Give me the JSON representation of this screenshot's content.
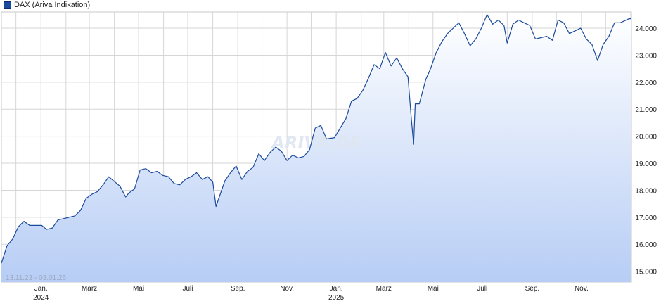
{
  "legend": {
    "label": "DAX (Ariva Indikation)",
    "color": "#1a4a9c"
  },
  "date_range": "13.11.23 - 03.01.26",
  "watermark": "ARIVA.DE",
  "chart_data": {
    "type": "area",
    "series": [
      {
        "name": "DAX (Ariva Indikation)",
        "x": [
          "2023-11-13",
          "2023-11-20",
          "2023-11-27",
          "2023-12-04",
          "2023-12-11",
          "2023-12-18",
          "2023-12-27",
          "2024-01-02",
          "2024-01-08",
          "2024-01-15",
          "2024-01-22",
          "2024-01-29",
          "2024-02-05",
          "2024-02-12",
          "2024-02-19",
          "2024-02-26",
          "2024-03-04",
          "2024-03-11",
          "2024-03-18",
          "2024-03-25",
          "2024-04-02",
          "2024-04-08",
          "2024-04-15",
          "2024-04-19",
          "2024-04-26",
          "2024-05-03",
          "2024-05-10",
          "2024-05-17",
          "2024-05-24",
          "2024-05-31",
          "2024-06-07",
          "2024-06-14",
          "2024-06-21",
          "2024-06-28",
          "2024-07-05",
          "2024-07-12",
          "2024-07-19",
          "2024-07-26",
          "2024-08-01",
          "2024-08-05",
          "2024-08-09",
          "2024-08-16",
          "2024-08-23",
          "2024-08-30",
          "2024-09-06",
          "2024-09-13",
          "2024-09-20",
          "2024-09-27",
          "2024-10-04",
          "2024-10-11",
          "2024-10-18",
          "2024-10-25",
          "2024-11-01",
          "2024-11-08",
          "2024-11-15",
          "2024-11-22",
          "2024-11-29",
          "2024-12-06",
          "2024-12-13",
          "2024-12-20",
          "2024-12-30",
          "2025-01-06",
          "2025-01-13",
          "2025-01-20",
          "2025-01-27",
          "2025-02-03",
          "2025-02-10",
          "2025-02-17",
          "2025-02-24",
          "2025-03-03",
          "2025-03-10",
          "2025-03-17",
          "2025-03-24",
          "2025-03-31",
          "2025-04-04",
          "2025-04-07",
          "2025-04-09",
          "2025-04-14",
          "2025-04-22",
          "2025-04-28",
          "2025-05-05",
          "2025-05-12",
          "2025-05-19",
          "2025-05-26",
          "2025-06-02",
          "2025-06-09",
          "2025-06-16",
          "2025-06-23",
          "2025-06-30",
          "2025-07-07",
          "2025-07-14",
          "2025-07-21",
          "2025-07-28",
          "2025-08-01",
          "2025-08-08",
          "2025-08-15",
          "2025-08-22",
          "2025-08-29",
          "2025-09-05",
          "2025-09-12",
          "2025-09-19",
          "2025-09-26",
          "2025-10-03",
          "2025-10-10",
          "2025-10-17",
          "2025-10-24",
          "2025-10-31",
          "2025-11-07",
          "2025-11-14",
          "2025-11-21",
          "2025-11-28",
          "2025-12-05",
          "2025-12-12",
          "2025-12-19",
          "2025-12-30",
          "2026-01-02"
        ],
        "values": [
          15300,
          15950,
          16200,
          16650,
          16850,
          16700,
          16700,
          16700,
          16550,
          16600,
          16900,
          16950,
          17000,
          17050,
          17250,
          17700,
          17850,
          17950,
          18200,
          18500,
          18300,
          18150,
          17750,
          17900,
          18050,
          18750,
          18800,
          18650,
          18700,
          18550,
          18500,
          18250,
          18200,
          18400,
          18500,
          18650,
          18400,
          18500,
          18300,
          17400,
          17750,
          18350,
          18650,
          18900,
          18400,
          18700,
          18850,
          19350,
          19100,
          19400,
          19600,
          19450,
          19100,
          19300,
          19200,
          19250,
          19500,
          20300,
          20400,
          19900,
          19950,
          20300,
          20650,
          21300,
          21400,
          21700,
          22150,
          22650,
          22500,
          23100,
          22600,
          22900,
          22500,
          22200,
          20700,
          19700,
          21200,
          21200,
          22100,
          22500,
          23100,
          23500,
          23800,
          24000,
          24200,
          23800,
          23350,
          23600,
          24000,
          24500,
          24150,
          24300,
          24100,
          23450,
          24150,
          24300,
          24200,
          24100,
          23600,
          23650,
          23700,
          23550,
          24300,
          24200,
          23800,
          23900,
          24000,
          23600,
          23400,
          22800,
          23400,
          23700,
          24200,
          24200,
          24350,
          24350
        ]
      }
    ],
    "ylim": [
      14600,
      24600
    ],
    "yticks": [
      15000,
      16000,
      17000,
      18000,
      19000,
      20000,
      21000,
      22000,
      23000,
      24000
    ],
    "xticks": [
      {
        "date": "2024-01-01",
        "label": "Jan.",
        "sublabel": "2024"
      },
      {
        "date": "2024-03-01",
        "label": "März",
        "sublabel": ""
      },
      {
        "date": "2024-05-01",
        "label": "Mai",
        "sublabel": ""
      },
      {
        "date": "2024-07-01",
        "label": "Juli",
        "sublabel": ""
      },
      {
        "date": "2024-09-01",
        "label": "Sep.",
        "sublabel": ""
      },
      {
        "date": "2024-11-01",
        "label": "Nov.",
        "sublabel": ""
      },
      {
        "date": "2025-01-01",
        "label": "Jan.",
        "sublabel": "2025"
      },
      {
        "date": "2025-03-01",
        "label": "März",
        "sublabel": ""
      },
      {
        "date": "2025-05-01",
        "label": "Mai",
        "sublabel": ""
      },
      {
        "date": "2025-07-01",
        "label": "Juli",
        "sublabel": ""
      },
      {
        "date": "2025-09-01",
        "label": "Sep.",
        "sublabel": ""
      },
      {
        "date": "2025-11-01",
        "label": "Nov.",
        "sublabel": ""
      }
    ],
    "grid": true,
    "legend_position": "top-left",
    "colors": {
      "line": "#1a4a9c",
      "fill_top": "#ffffff",
      "fill_bottom": "#b7cdf5",
      "grid": "#d6d6d6"
    }
  }
}
